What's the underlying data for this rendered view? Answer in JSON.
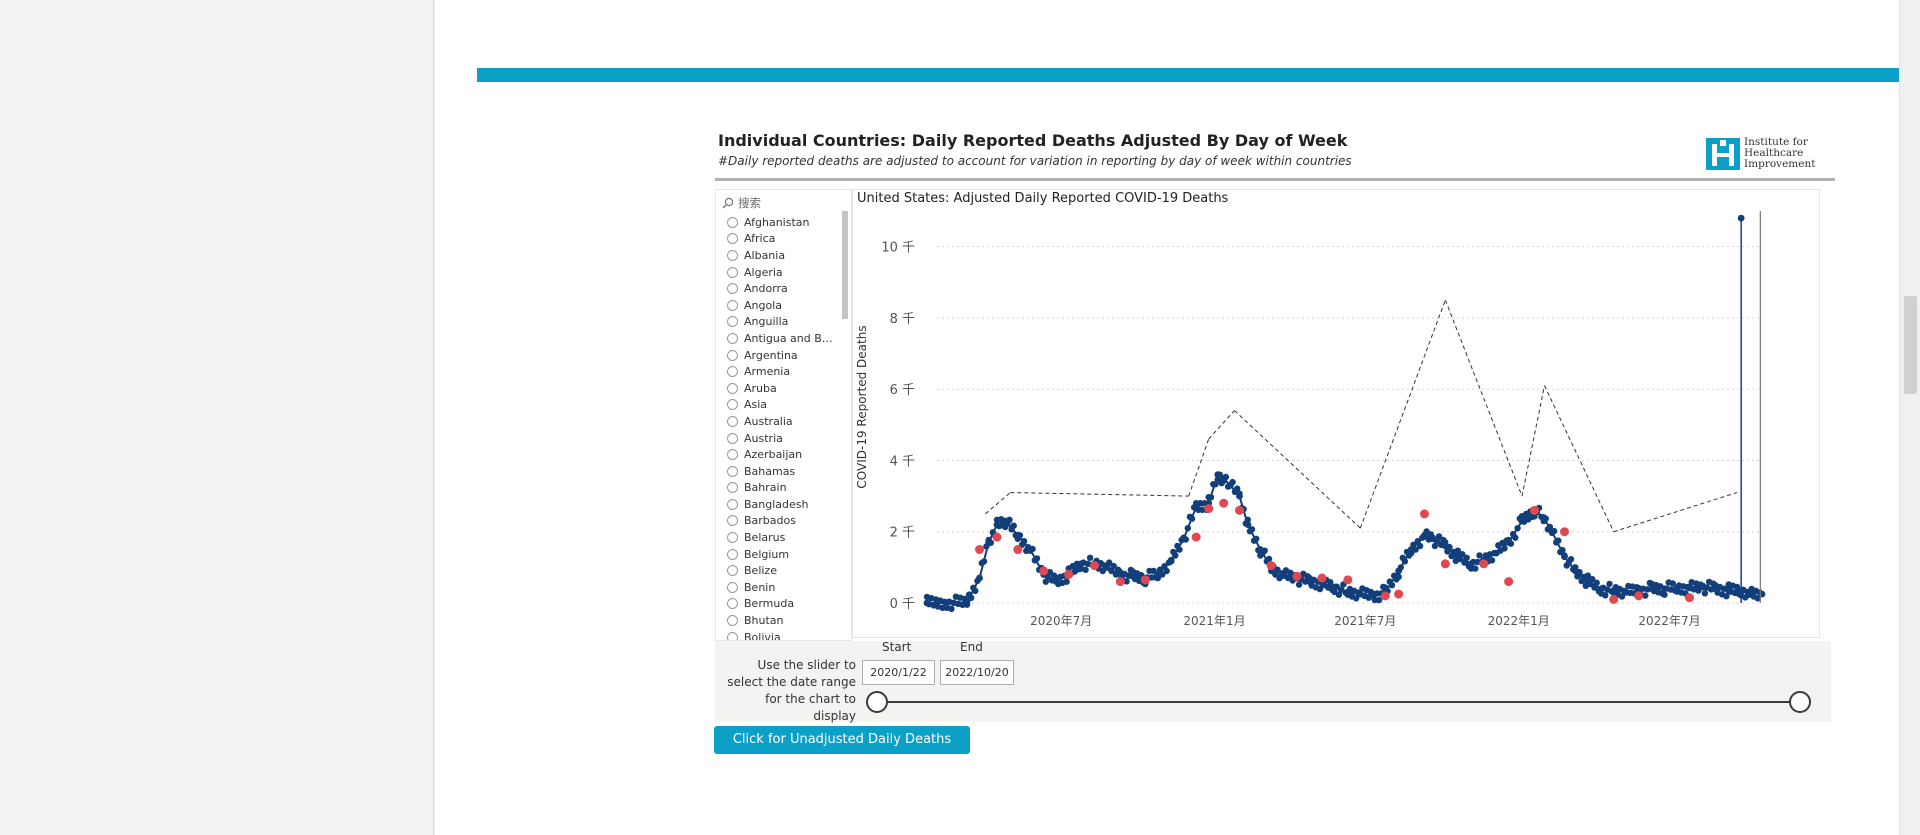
{
  "report": {
    "title": "Individual Countries: Daily Reported Deaths Adjusted By Day of Week",
    "subtitle": "#Daily reported deaths are adjusted to account for variation in reporting by day of week within countries",
    "logo_text": [
      "Institute for",
      "Healthcare",
      "Improvement"
    ]
  },
  "colors": {
    "accent_band": "#0ca0c6",
    "series_dark": "#123f7a",
    "series_red": "#e0494f",
    "spike_line": "#2233aa",
    "band_dash": "#333333",
    "button_bg": "#0ca0c6"
  },
  "slicer": {
    "search_placeholder": "搜索",
    "search_icon": "search-icon",
    "items": [
      "Afghanistan",
      "Africa",
      "Albania",
      "Algeria",
      "Andorra",
      "Angola",
      "Anguilla",
      "Antigua and Barb...",
      "Argentina",
      "Armenia",
      "Aruba",
      "Asia",
      "Australia",
      "Austria",
      "Azerbaijan",
      "Bahamas",
      "Bahrain",
      "Bangladesh",
      "Barbados",
      "Belarus",
      "Belgium",
      "Belize",
      "Benin",
      "Bermuda",
      "Bhutan",
      "Bolivia"
    ]
  },
  "chart_data": {
    "type": "scatter",
    "title": "United States: Adjusted Daily Reported COVID-19 Deaths",
    "xlabel": "",
    "ylabel": "COVID-19 Reported Deaths",
    "y_ticks": [
      "10 千",
      "8 千",
      "6 千",
      "4 千",
      "2 千",
      "0 千"
    ],
    "ylim": [
      0,
      11000
    ],
    "x_ticks": [
      "2020年7月",
      "2021年1月",
      "2021年7月",
      "2022年1月",
      "2022年7月"
    ],
    "xlim": [
      "2020-01-22",
      "2022-10-20"
    ],
    "grid": true,
    "series": [
      {
        "x": [
          "2020-01-22",
          "2020-02-15",
          "2020-03-10",
          "2020-03-25",
          "2020-04-05",
          "2020-04-15",
          "2020-04-25",
          "2020-05-10",
          "2020-05-25",
          "2020-06-10",
          "2020-06-25",
          "2020-07-10",
          "2020-07-25",
          "2020-08-10",
          "2020-08-25",
          "2020-09-10",
          "2020-09-25",
          "2020-10-10",
          "2020-10-25",
          "2020-11-10",
          "2020-11-25",
          "2020-12-10",
          "2020-12-25",
          "2021-01-05",
          "2021-01-12",
          "2021-01-20",
          "2021-01-31",
          "2021-02-10",
          "2021-02-25",
          "2021-03-10",
          "2021-03-25",
          "2021-04-10",
          "2021-04-25",
          "2021-05-10",
          "2021-05-25",
          "2021-06-10",
          "2021-06-25",
          "2021-07-10",
          "2021-07-25",
          "2021-08-10",
          "2021-08-25",
          "2021-09-10",
          "2021-09-20",
          "2021-10-05",
          "2021-10-20",
          "2021-11-05",
          "2021-11-20",
          "2021-12-05",
          "2021-12-20",
          "2022-01-05",
          "2022-01-20",
          "2022-01-31",
          "2022-02-10",
          "2022-02-25",
          "2022-03-10",
          "2022-03-25",
          "2022-04-10",
          "2022-04-25",
          "2022-05-10",
          "2022-05-25",
          "2022-06-10",
          "2022-06-25",
          "2022-07-10",
          "2022-07-25",
          "2022-08-10",
          "2022-08-25",
          "2022-09-10",
          "2022-09-25",
          "2022-10-05",
          "2022-10-20"
        ],
        "y": [
          0,
          0,
          20,
          700,
          1700,
          2200,
          2300,
          1900,
          1500,
          800,
          600,
          800,
          1100,
          1100,
          1000,
          800,
          750,
          700,
          800,
          1200,
          1800,
          2700,
          2800,
          3600,
          3500,
          3300,
          3000,
          2200,
          1500,
          1000,
          800,
          700,
          600,
          550,
          450,
          300,
          250,
          200,
          300,
          900,
          1500,
          1900,
          1800,
          1600,
          1300,
          1100,
          1200,
          1400,
          1700,
          2300,
          2600,
          2400,
          2000,
          1300,
          900,
          600,
          400,
          350,
          300,
          350,
          400,
          400,
          420,
          450,
          450,
          400,
          350,
          350,
          300,
          250
        ]
      }
    ],
    "highlight_points_red": [
      {
        "x": "2020-03-25",
        "y": 1500
      },
      {
        "x": "2020-04-15",
        "y": 1850
      },
      {
        "x": "2020-05-10",
        "y": 1500
      },
      {
        "x": "2020-06-10",
        "y": 900
      },
      {
        "x": "2020-07-10",
        "y": 800
      },
      {
        "x": "2020-08-10",
        "y": 1050
      },
      {
        "x": "2020-09-10",
        "y": 600
      },
      {
        "x": "2020-10-10",
        "y": 650
      },
      {
        "x": "2020-12-10",
        "y": 1850
      },
      {
        "x": "2020-12-25",
        "y": 2650
      },
      {
        "x": "2021-01-12",
        "y": 2800
      },
      {
        "x": "2021-01-31",
        "y": 2600
      },
      {
        "x": "2021-03-10",
        "y": 1050
      },
      {
        "x": "2021-04-10",
        "y": 750
      },
      {
        "x": "2021-05-10",
        "y": 700
      },
      {
        "x": "2021-06-10",
        "y": 650
      },
      {
        "x": "2021-07-25",
        "y": 200
      },
      {
        "x": "2021-08-10",
        "y": 250
      },
      {
        "x": "2021-09-10",
        "y": 2500
      },
      {
        "x": "2021-10-05",
        "y": 1100
      },
      {
        "x": "2021-11-20",
        "y": 1100
      },
      {
        "x": "2021-12-20",
        "y": 600
      },
      {
        "x": "2022-01-20",
        "y": 2600
      },
      {
        "x": "2022-02-25",
        "y": 2000
      },
      {
        "x": "2022-04-25",
        "y": 100
      },
      {
        "x": "2022-05-25",
        "y": 200
      },
      {
        "x": "2022-07-25",
        "y": 150
      }
    ],
    "upper_band": [
      {
        "x": "2020-04-01",
        "y": 2500
      },
      {
        "x": "2020-05-01",
        "y": 3100
      },
      {
        "x": "2020-12-01",
        "y": 3000
      },
      {
        "x": "2020-12-25",
        "y": 4600
      },
      {
        "x": "2021-01-25",
        "y": 5400
      },
      {
        "x": "2021-06-25",
        "y": 2100
      },
      {
        "x": "2021-10-05",
        "y": 8500
      },
      {
        "x": "2022-01-05",
        "y": 3000
      },
      {
        "x": "2022-02-01",
        "y": 6100
      },
      {
        "x": "2022-04-25",
        "y": 2000
      },
      {
        "x": "2022-09-20",
        "y": 3100
      }
    ],
    "spikes": [
      {
        "x": "2022-09-25",
        "y": 10800
      },
      {
        "x": "2022-10-18",
        "y": 11000
      }
    ]
  },
  "slider": {
    "help_text": "Use the slider to select the date range for the chart to display",
    "start_label": "Start",
    "end_label": "End",
    "start_value": "2020/1/22",
    "end_value": "2022/10/20"
  },
  "button": {
    "unadjusted_label": "Click for Unadjusted Daily Deaths"
  }
}
